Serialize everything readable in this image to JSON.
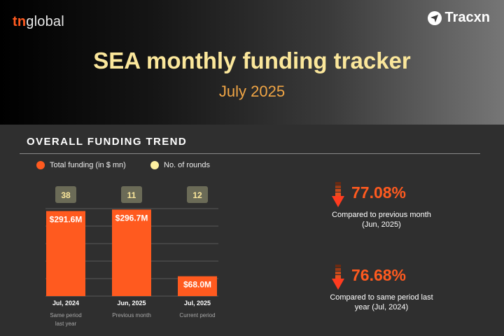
{
  "header": {
    "brand_prefix": "tn",
    "brand_suffix": "global",
    "partner": "Tracxn",
    "title": "SEA monthly funding tracker",
    "subtitle": "July 2025"
  },
  "section": {
    "title": "OVERALL FUNDING TREND",
    "legend": [
      {
        "label": "Total funding (in $ mn)",
        "color": "#ff5a1f"
      },
      {
        "label": "No. of rounds",
        "color": "#fdf0a0"
      }
    ]
  },
  "chart_data": {
    "type": "bar",
    "categories": [
      "Jul, 2024",
      "Jun, 2025",
      "Jul, 2025"
    ],
    "category_notes": [
      "Same period last year",
      "Previous month",
      "Current period"
    ],
    "series": [
      {
        "name": "Total funding (in $ mn)",
        "values": [
          291.6,
          296.7,
          68.0
        ],
        "labels": [
          "$291.6M",
          "$296.7M",
          "$68.0M"
        ],
        "color": "#ff5a1f"
      },
      {
        "name": "No. of rounds",
        "values": [
          38,
          11,
          12
        ],
        "color": "#6b6b57"
      }
    ],
    "ylim": [
      0,
      300
    ],
    "grid": true
  },
  "stats": [
    {
      "value": "77.08%",
      "direction": "down",
      "line1": "Compared to previous month",
      "line2": "(Jun, 2025)"
    },
    {
      "value": "76.68%",
      "direction": "down",
      "line1": "Compared to same period last",
      "line2": "year (Jul, 2024)"
    }
  ]
}
